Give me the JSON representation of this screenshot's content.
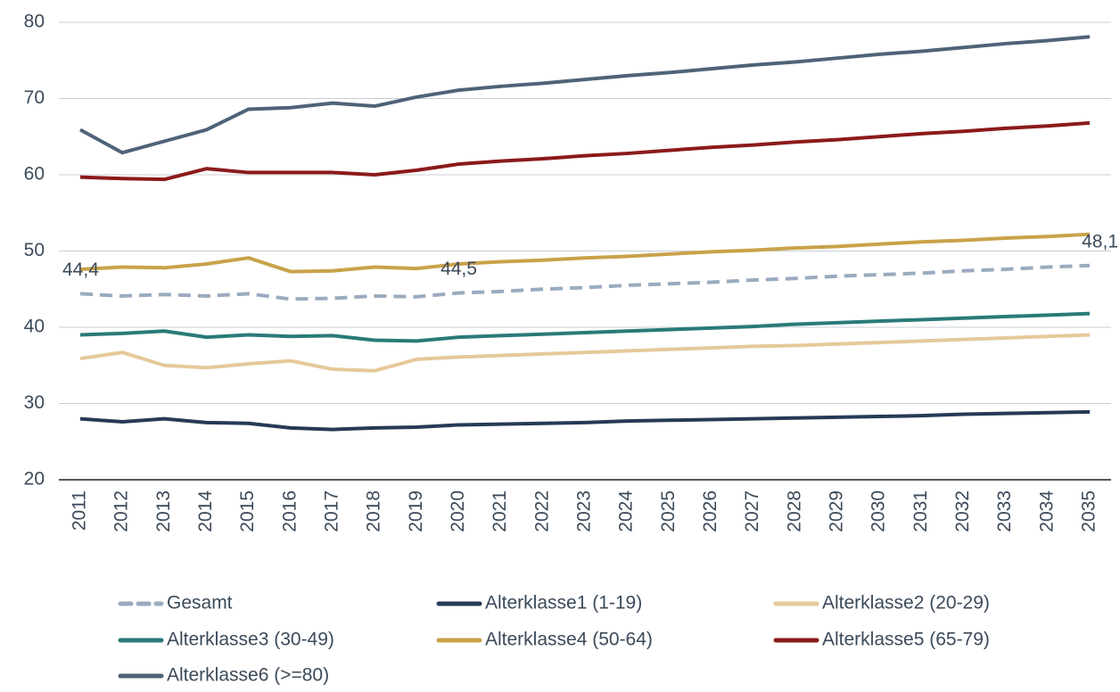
{
  "chart_data": {
    "type": "line",
    "categories": [
      "2011",
      "2012",
      "2013",
      "2014",
      "2015",
      "2016",
      "2017",
      "2018",
      "2019",
      "2020",
      "2021",
      "2022",
      "2023",
      "2024",
      "2025",
      "2026",
      "2027",
      "2028",
      "2029",
      "2030",
      "2031",
      "2032",
      "2033",
      "2034",
      "2035"
    ],
    "ylim": [
      20,
      80
    ],
    "yticks": [
      20,
      30,
      40,
      50,
      60,
      70,
      80
    ],
    "grid": true,
    "series": [
      {
        "name": "Gesamt",
        "color": "#9aabbf",
        "dash": true,
        "values": [
          44.4,
          44.1,
          44.3,
          44.1,
          44.4,
          43.7,
          43.8,
          44.1,
          44.0,
          44.5,
          44.7,
          45.0,
          45.2,
          45.5,
          45.7,
          45.9,
          46.2,
          46.4,
          46.7,
          46.9,
          47.1,
          47.4,
          47.6,
          47.9,
          48.1
        ],
        "value_labels": [
          "44,4",
          null,
          null,
          null,
          null,
          null,
          null,
          null,
          null,
          "44,5",
          null,
          null,
          null,
          null,
          null,
          null,
          null,
          null,
          null,
          null,
          null,
          null,
          null,
          null,
          "48,1"
        ]
      },
      {
        "name": "Alterklasse1 (1-19)",
        "color": "#253a56",
        "values": [
          28.0,
          27.6,
          28.0,
          27.5,
          27.4,
          26.8,
          26.6,
          26.8,
          26.9,
          27.2,
          27.3,
          27.4,
          27.5,
          27.7,
          27.8,
          27.9,
          28.0,
          28.1,
          28.2,
          28.3,
          28.4,
          28.6,
          28.7,
          28.8,
          28.9
        ]
      },
      {
        "name": "Alterklasse2 (20-29)",
        "color": "#e5c99a",
        "values": [
          35.9,
          36.7,
          35.0,
          34.7,
          35.2,
          35.6,
          34.5,
          34.3,
          35.8,
          36.1,
          36.3,
          36.5,
          36.7,
          36.9,
          37.1,
          37.3,
          37.5,
          37.6,
          37.8,
          38.0,
          38.2,
          38.4,
          38.6,
          38.8,
          39.0
        ]
      },
      {
        "name": "Alterklasse3 (30-49)",
        "color": "#2a7a78",
        "values": [
          39.0,
          39.2,
          39.5,
          38.7,
          39.0,
          38.8,
          38.9,
          38.3,
          38.2,
          38.7,
          38.9,
          39.1,
          39.3,
          39.5,
          39.7,
          39.9,
          40.1,
          40.4,
          40.6,
          40.8,
          41.0,
          41.2,
          41.4,
          41.6,
          41.8
        ]
      },
      {
        "name": "Alterklasse4 (50-64)",
        "color": "#c9a24a",
        "values": [
          47.6,
          47.9,
          47.8,
          48.3,
          49.1,
          47.3,
          47.4,
          47.9,
          47.7,
          48.3,
          48.6,
          48.8,
          49.1,
          49.3,
          49.6,
          49.9,
          50.1,
          50.4,
          50.6,
          50.9,
          51.2,
          51.4,
          51.7,
          51.9,
          52.2
        ]
      },
      {
        "name": "Alterklasse5 (65-79)",
        "color": "#8b1a1a",
        "values": [
          59.7,
          59.5,
          59.4,
          60.8,
          60.3,
          60.3,
          60.3,
          60.0,
          60.6,
          61.4,
          61.8,
          62.1,
          62.5,
          62.8,
          63.2,
          63.6,
          63.9,
          64.3,
          64.6,
          65.0,
          65.4,
          65.7,
          66.1,
          66.4,
          66.8
        ]
      },
      {
        "name": "Alterklasse6 (>=80)",
        "color": "#4f6378",
        "values": [
          65.9,
          62.9,
          64.4,
          65.9,
          68.6,
          68.8,
          69.4,
          69.0,
          70.2,
          71.1,
          71.6,
          72.0,
          72.5,
          73.0,
          73.4,
          73.9,
          74.4,
          74.8,
          75.3,
          75.8,
          76.2,
          76.7,
          77.2,
          77.6,
          78.1
        ]
      }
    ]
  }
}
